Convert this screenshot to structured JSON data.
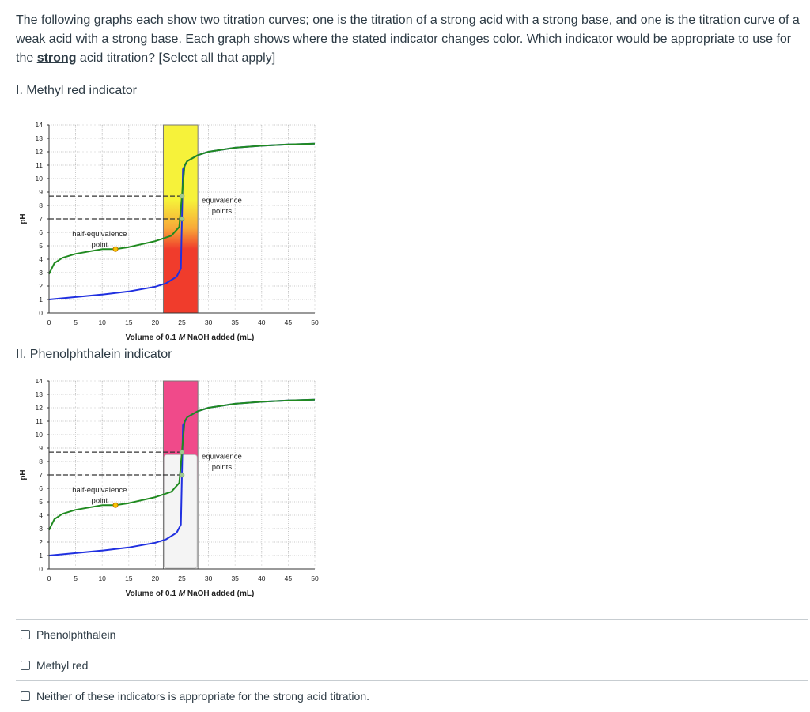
{
  "question": {
    "text_before": "The following graphs each show two titration curves; one is the titration of a strong acid with a strong base, and one is the titration curve of a weak acid with a strong base. Each graph shows where the stated indicator changes color. Which indicator would be appropriate to use for the ",
    "emphasis": "strong",
    "text_after": " acid titration? [Select all that apply]"
  },
  "sections": [
    {
      "label": "I. Methyl red indicator"
    },
    {
      "label": "II. Phenolphthalein indicator"
    }
  ],
  "charts": [
    {
      "ylabel": "pH",
      "xlabel_parts": [
        "Volume of 0.1 ",
        "M",
        " NaOH added (mL)"
      ],
      "annotation_eq": [
        "equivalence",
        "points"
      ],
      "annotation_half": [
        "half-equivalence",
        "point"
      ],
      "band_colors": [
        "#f6f23a",
        "#f8a838",
        "#f03c2c"
      ]
    },
    {
      "ylabel": "pH",
      "xlabel_parts": [
        "Volume of 0.1 ",
        "M",
        " NaOH added (mL)"
      ],
      "annotation_eq": [
        "equivalence",
        "points"
      ],
      "annotation_half": [
        "half-equivalence",
        "point"
      ],
      "band_colors": [
        "#f04a8a",
        "#f8c0dc",
        "#f4f4f4"
      ]
    }
  ],
  "chart_data": [
    {
      "type": "line",
      "title": "",
      "xlabel": "Volume of 0.1 M NaOH added (mL)",
      "ylabel": "pH",
      "xlim": [
        0,
        50
      ],
      "ylim": [
        0,
        14
      ],
      "x_ticks": [
        0,
        5,
        10,
        15,
        20,
        25,
        30,
        35,
        40,
        45,
        50
      ],
      "y_ticks": [
        0,
        1,
        2,
        3,
        4,
        5,
        6,
        7,
        8,
        9,
        10,
        11,
        12,
        13,
        14
      ],
      "grid": true,
      "indicator_range": [
        4.4,
        6.2
      ],
      "series": [
        {
          "color": "#2030e0",
          "x": [
            0,
            5,
            10,
            15,
            20,
            22,
            24,
            24.8,
            25,
            25.2,
            26,
            28,
            30,
            35,
            40,
            45,
            50
          ],
          "y": [
            1.0,
            1.18,
            1.37,
            1.6,
            1.95,
            2.2,
            2.7,
            3.3,
            7.0,
            10.7,
            11.3,
            11.75,
            12.0,
            12.3,
            12.45,
            12.55,
            12.6
          ]
        },
        {
          "color": "#208a20",
          "x": [
            0,
            1,
            2.5,
            5,
            10,
            12.5,
            15,
            20,
            23,
            24.5,
            25,
            25.5,
            26,
            28,
            30,
            35,
            40,
            45,
            50
          ],
          "y": [
            2.9,
            3.7,
            4.1,
            4.4,
            4.75,
            4.75,
            4.9,
            5.35,
            5.75,
            6.4,
            8.7,
            11.0,
            11.3,
            11.75,
            12.0,
            12.3,
            12.45,
            12.55,
            12.6
          ]
        }
      ],
      "reference_lines_y": [
        7,
        8.7
      ],
      "markers": [
        {
          "x": 12.5,
          "y": 4.75
        },
        {
          "x": 25,
          "y": 7.0
        },
        {
          "x": 25,
          "y": 8.7
        }
      ]
    },
    {
      "type": "line",
      "title": "",
      "xlabel": "Volume of 0.1 M NaOH added (mL)",
      "ylabel": "pH",
      "xlim": [
        0,
        50
      ],
      "ylim": [
        0,
        14
      ],
      "x_ticks": [
        0,
        5,
        10,
        15,
        20,
        25,
        30,
        35,
        40,
        45,
        50
      ],
      "y_ticks": [
        0,
        1,
        2,
        3,
        4,
        5,
        6,
        7,
        8,
        9,
        10,
        11,
        12,
        13,
        14
      ],
      "grid": true,
      "indicator_range": [
        8.2,
        10.0
      ],
      "series": [
        {
          "color": "#2030e0",
          "x": [
            0,
            5,
            10,
            15,
            20,
            22,
            24,
            24.8,
            25,
            25.2,
            26,
            28,
            30,
            35,
            40,
            45,
            50
          ],
          "y": [
            1.0,
            1.18,
            1.37,
            1.6,
            1.95,
            2.2,
            2.7,
            3.3,
            7.0,
            10.7,
            11.3,
            11.75,
            12.0,
            12.3,
            12.45,
            12.55,
            12.6
          ]
        },
        {
          "color": "#208a20",
          "x": [
            0,
            1,
            2.5,
            5,
            10,
            12.5,
            15,
            20,
            23,
            24.5,
            25,
            25.5,
            26,
            28,
            30,
            35,
            40,
            45,
            50
          ],
          "y": [
            2.9,
            3.7,
            4.1,
            4.4,
            4.75,
            4.75,
            4.9,
            5.35,
            5.75,
            6.4,
            8.7,
            11.0,
            11.3,
            11.75,
            12.0,
            12.3,
            12.45,
            12.55,
            12.6
          ]
        }
      ],
      "reference_lines_y": [
        7,
        8.7
      ],
      "markers": [
        {
          "x": 12.5,
          "y": 4.75
        },
        {
          "x": 25,
          "y": 7.0
        },
        {
          "x": 25,
          "y": 8.7
        }
      ]
    }
  ],
  "answers": [
    {
      "label": "Phenolphthalein",
      "checked": false
    },
    {
      "label": "Methyl red",
      "checked": false
    },
    {
      "label": "Neither of these indicators is appropriate for the strong acid titration.",
      "checked": false
    }
  ]
}
